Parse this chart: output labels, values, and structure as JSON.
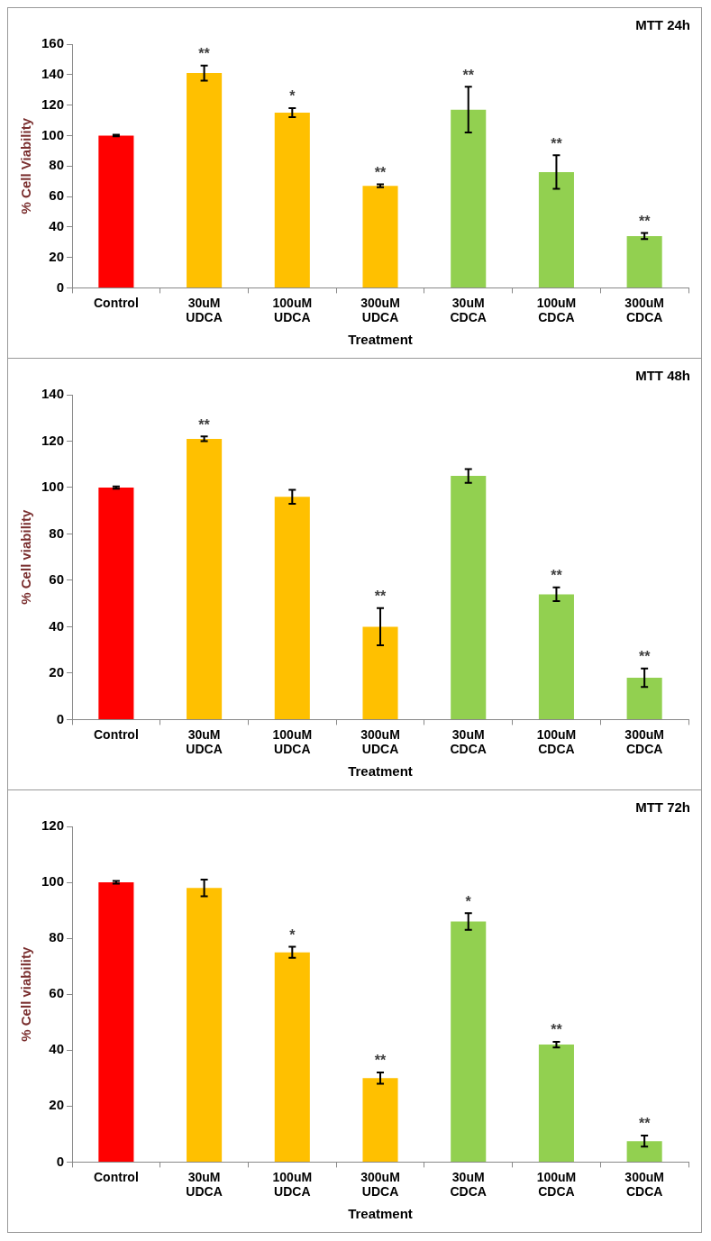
{
  "chart_data": [
    {
      "type": "bar",
      "title": "MTT 24h",
      "xlabel": "Treatment",
      "ylabel": "% Cell Viability",
      "categories": [
        "Control",
        "30uM UDCA",
        "100uM UDCA",
        "300uM UDCA",
        "30uM CDCA",
        "100uM CDCA",
        "300uM CDCA"
      ],
      "values": [
        100,
        141,
        115,
        67,
        117,
        76,
        34
      ],
      "errors": [
        0.5,
        5,
        3,
        1,
        15,
        11,
        2
      ],
      "colors": [
        "#ff0000",
        "#ffc000",
        "#ffc000",
        "#ffc000",
        "#92d050",
        "#92d050",
        "#92d050"
      ],
      "ylim": [
        0,
        160
      ],
      "yticks": [
        0,
        20,
        40,
        60,
        80,
        100,
        120,
        140,
        160
      ],
      "grid": false,
      "legend": false,
      "annotations": [
        {
          "text": "**",
          "x": "30uM UDCA",
          "y": 146
        },
        {
          "text": "*",
          "x": "100uM UDCA",
          "y": 118
        },
        {
          "text": "**",
          "x": "300uM UDCA",
          "y": 68
        },
        {
          "text": "**",
          "x": "30uM CDCA",
          "y": 132
        },
        {
          "text": "**",
          "x": "100uM CDCA",
          "y": 87
        },
        {
          "text": "**",
          "x": "300uM CDCA",
          "y": 36
        }
      ]
    },
    {
      "type": "bar",
      "title": "MTT 48h",
      "xlabel": "Treatment",
      "ylabel": "% Cell viability",
      "categories": [
        "Control",
        "30uM UDCA",
        "100uM UDCA",
        "300uM UDCA",
        "30uM CDCA",
        "100uM CDCA",
        "300uM CDCA"
      ],
      "values": [
        100,
        121,
        96,
        40,
        105,
        54,
        18
      ],
      "errors": [
        0.5,
        1,
        3,
        8,
        3,
        3,
        4
      ],
      "colors": [
        "#ff0000",
        "#ffc000",
        "#ffc000",
        "#ffc000",
        "#92d050",
        "#92d050",
        "#92d050"
      ],
      "ylim": [
        0,
        140
      ],
      "yticks": [
        0,
        20,
        40,
        60,
        80,
        100,
        120,
        140
      ],
      "grid": false,
      "legend": false,
      "annotations": [
        {
          "text": "**",
          "x": "30uM UDCA",
          "y": 122
        },
        {
          "text": "**",
          "x": "300uM UDCA",
          "y": 48
        },
        {
          "text": "**",
          "x": "100uM CDCA",
          "y": 57
        },
        {
          "text": "**",
          "x": "300uM CDCA",
          "y": 22
        }
      ]
    },
    {
      "type": "bar",
      "title": "MTT 72h",
      "xlabel": "Treatment",
      "ylabel": "% Cell viability",
      "categories": [
        "Control",
        "30uM UDCA",
        "100uM UDCA",
        "300uM UDCA",
        "30uM CDCA",
        "100uM CDCA",
        "300uM CDCA"
      ],
      "values": [
        100,
        98,
        75,
        30,
        86,
        42,
        7.5
      ],
      "errors": [
        0.5,
        3,
        2,
        2,
        3,
        1,
        2
      ],
      "colors": [
        "#ff0000",
        "#ffc000",
        "#ffc000",
        "#ffc000",
        "#92d050",
        "#92d050",
        "#92d050"
      ],
      "ylim": [
        0,
        120
      ],
      "yticks": [
        0,
        20,
        40,
        60,
        80,
        100,
        120
      ],
      "grid": false,
      "legend": false,
      "annotations": [
        {
          "text": "*",
          "x": "100uM UDCA",
          "y": 77
        },
        {
          "text": "**",
          "x": "300uM UDCA",
          "y": 32
        },
        {
          "text": "*",
          "x": "30uM CDCA",
          "y": 89
        },
        {
          "text": "**",
          "x": "100uM CDCA",
          "y": 43
        },
        {
          "text": "**",
          "x": "300uM CDCA",
          "y": 9.5
        }
      ]
    }
  ]
}
